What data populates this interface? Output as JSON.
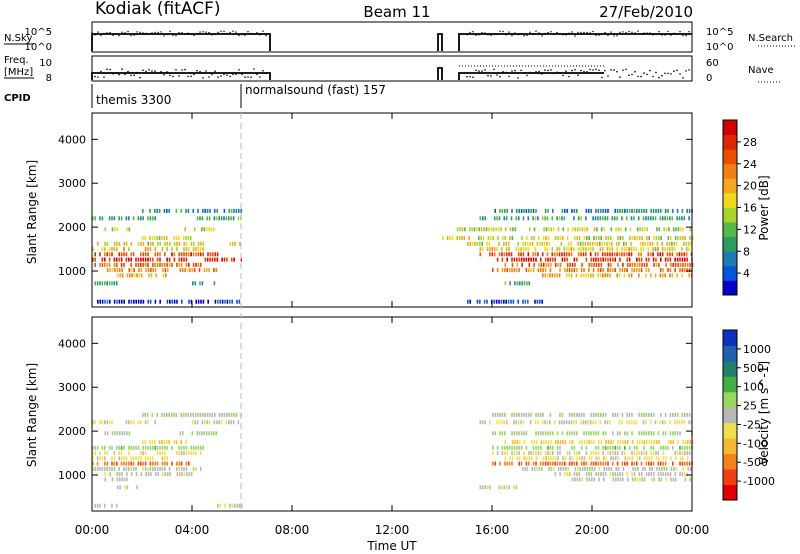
{
  "header": {
    "station": "Kodiak (fitACF)",
    "beam": "Beam 11",
    "date": "27/Feb/2010"
  },
  "side_labels": {
    "nsky": "N.Sky",
    "nsearch": "N.Search",
    "freq": "Freq.",
    "freq_unit": "[MHz]",
    "nave": "Nave",
    "cpid": "CPID"
  },
  "noise_panel": {
    "left_ticks": [
      "10^5",
      "10^0"
    ],
    "right_ticks": [
      "10^5",
      "10^0"
    ]
  },
  "freq_panel": {
    "left_ticks": [
      "10",
      "8"
    ],
    "right_ticks": [
      "60",
      "0"
    ]
  },
  "cpid": [
    {
      "label": "themis 3300",
      "start_hour": 0
    },
    {
      "label": "normalsound (fast) 157",
      "start_hour": 6
    }
  ],
  "x_axis": {
    "label": "Time UT",
    "ticks": [
      "00:00",
      "04:00",
      "08:00",
      "12:00",
      "16:00",
      "20:00",
      "00:00"
    ],
    "range_hours": [
      0,
      24
    ]
  },
  "chart_data": [
    {
      "type": "heatmap",
      "name": "power",
      "ylabel": "Slant Range [km]",
      "yticks": [
        "4000",
        "3000",
        "2000",
        "1000"
      ],
      "ylim": [
        180,
        4600
      ],
      "colorbar": {
        "label": "Power [dB]",
        "ticks": [
          "28",
          "24",
          "20",
          "16",
          "12",
          "8",
          "4"
        ],
        "range": [
          0,
          32
        ],
        "colors": [
          "#0000cc",
          "#0055dd",
          "#1f7ab4",
          "#2e9c5e",
          "#55b948",
          "#aad22d",
          "#f0d81e",
          "#f5a623",
          "#f07f14",
          "#e65000",
          "#dc2800",
          "#d20000"
        ]
      },
      "bands": [
        {
          "range_km": 2370,
          "t": [
            [
              2.0,
              6.0
            ],
            [
              16.0,
              24.0
            ]
          ],
          "v": 8
        },
        {
          "range_km": 2200,
          "t": [
            [
              0.0,
              2.5
            ],
            [
              4.0,
              6.0
            ],
            [
              15.5,
              24.0
            ]
          ],
          "v": 10
        },
        {
          "range_km": 1950,
          "t": [
            [
              0.5,
              1.5
            ],
            [
              3.5,
              5.0
            ],
            [
              14.5,
              24.0
            ]
          ],
          "v": 15
        },
        {
          "range_km": 1750,
          "t": [
            [
              2.0,
              4.0
            ],
            [
              14.0,
              24.0
            ]
          ],
          "v": 16
        },
        {
          "range_km": 1620,
          "t": [
            [
              0.2,
              4.5
            ],
            [
              5.5,
              6.0
            ],
            [
              15.0,
              24.0
            ]
          ],
          "v": 17
        },
        {
          "range_km": 1500,
          "t": [
            [
              0.0,
              4.5
            ],
            [
              15.5,
              24.0
            ]
          ],
          "v": 18
        },
        {
          "range_km": 1380,
          "t": [
            [
              0.0,
              5.0
            ],
            [
              15.5,
              24.0
            ]
          ],
          "v": 26
        },
        {
          "range_km": 1260,
          "t": [
            [
              0.0,
              3.8
            ],
            [
              4.5,
              6.0
            ],
            [
              16.0,
              24.0
            ]
          ],
          "v": 29
        },
        {
          "range_km": 1140,
          "t": [
            [
              0.0,
              4.5
            ],
            [
              16.5,
              24.0
            ]
          ],
          "v": 24
        },
        {
          "range_km": 1020,
          "t": [
            [
              0.5,
              3.0
            ],
            [
              3.5,
              5.0
            ],
            [
              16.0,
              24.0
            ]
          ],
          "v": 22
        },
        {
          "range_km": 900,
          "t": [
            [
              1.0,
              3.0
            ],
            [
              18.0,
              24.0
            ]
          ],
          "v": 20
        },
        {
          "range_km": 720,
          "t": [
            [
              0.0,
              1.0
            ],
            [
              4.0,
              5.0
            ],
            [
              16.5,
              17.5
            ]
          ],
          "v": 10
        },
        {
          "range_km": 300,
          "t": [
            [
              0.2,
              6.0
            ],
            [
              15.0,
              18.0
            ]
          ],
          "v": 3
        }
      ]
    },
    {
      "type": "heatmap",
      "name": "velocity",
      "ylabel": "Slant Range [km]",
      "yticks": [
        "4000",
        "3000",
        "2000",
        "1000"
      ],
      "ylim": [
        180,
        4600
      ],
      "colorbar": {
        "label": "Velocity [m s^-1]",
        "ticks": [
          "1000",
          "500",
          "100",
          "25",
          "-25",
          "-100",
          "-500",
          "-1000"
        ],
        "range": [
          -1200,
          1200
        ],
        "colors": [
          "#e00000",
          "#f04010",
          "#f58020",
          "#f5b830",
          "#f0e050",
          "#b8b8b8",
          "#98d860",
          "#40b040",
          "#208070",
          "#2060b0",
          "#1030c0"
        ]
      },
      "bands": [
        {
          "range_km": 2370,
          "t": [
            [
              2.0,
              6.0
            ],
            [
              16.0,
              24.0
            ]
          ],
          "v": 80
        },
        {
          "range_km": 2200,
          "t": [
            [
              0.0,
              2.5
            ],
            [
              4.0,
              6.0
            ],
            [
              15.5,
              24.0
            ]
          ],
          "v": -120
        },
        {
          "range_km": 1950,
          "t": [
            [
              0.5,
              1.5
            ],
            [
              3.5,
              5.0
            ],
            [
              16.0,
              24.0
            ]
          ],
          "v": 150
        },
        {
          "range_km": 1750,
          "t": [
            [
              2.0,
              4.0
            ],
            [
              16.5,
              24.0
            ]
          ],
          "v": -300
        },
        {
          "range_km": 1620,
          "t": [
            [
              0.0,
              4.5
            ],
            [
              16.0,
              24.0
            ]
          ],
          "v": 200
        },
        {
          "range_km": 1500,
          "t": [
            [
              0.0,
              4.5
            ],
            [
              16.0,
              24.0
            ]
          ],
          "v": -150
        },
        {
          "range_km": 1380,
          "t": [
            [
              0.0,
              3.0
            ],
            [
              16.5,
              24.0
            ]
          ],
          "v": -200
        },
        {
          "range_km": 1260,
          "t": [
            [
              0.0,
              4.0
            ],
            [
              16.0,
              24.0
            ]
          ],
          "v": -700
        },
        {
          "range_km": 1140,
          "t": [
            [
              0.0,
              4.5
            ],
            [
              17.0,
              24.0
            ]
          ],
          "v": 0
        },
        {
          "range_km": 1020,
          "t": [
            [
              0.5,
              4.0
            ],
            [
              18.5,
              24.0
            ]
          ],
          "v": 0
        },
        {
          "range_km": 900,
          "t": [
            [
              0.5,
              1.5
            ],
            [
              19.0,
              24.0
            ]
          ],
          "v": 10
        },
        {
          "range_km": 720,
          "t": [
            [
              1.0,
              2.0
            ],
            [
              15.5,
              17.0
            ]
          ],
          "v": -80
        },
        {
          "range_km": 300,
          "t": [
            [
              0.0,
              1.0
            ],
            [
              5.0,
              6.0
            ]
          ],
          "v": 0
        }
      ]
    }
  ]
}
